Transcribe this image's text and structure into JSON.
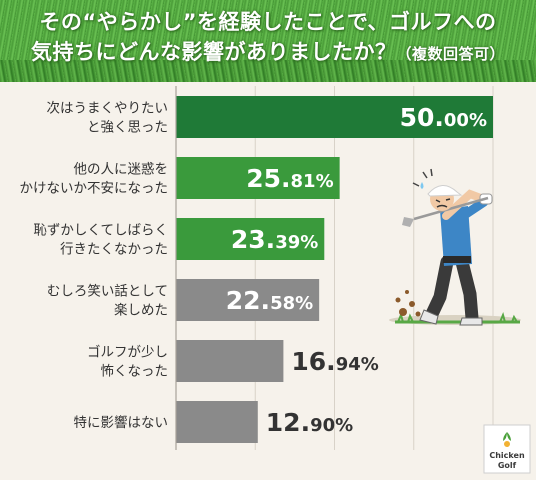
{
  "title": {
    "line1": "その“やらかし”を経験したことで、ゴルフへの",
    "line2_main": "気持ちにどんな影響がありましたか？",
    "line2_note": "（複数回答可）"
  },
  "logo": {
    "line1": "Chicken",
    "line2": "Golf"
  },
  "colors": {
    "dark_green": "#1f7a37",
    "green": "#3a9a3c",
    "gray": "#8a8a8a",
    "background": "#f6f2eb",
    "grid": "#d8d2c8"
  },
  "chart_data": {
    "type": "bar",
    "orientation": "horizontal",
    "categories": [
      [
        "次はうまくやりたい",
        "と強く思った"
      ],
      [
        "他の人に迷惑を",
        "かけないか不安になった"
      ],
      [
        "恥ずかしくてしばらく",
        "行きたくなかった"
      ],
      [
        "むしろ笑い話として",
        "楽しめた"
      ],
      [
        "ゴルフが少し",
        "怖くなった"
      ],
      [
        "特に影響はない"
      ]
    ],
    "values": [
      50.0,
      25.81,
      23.39,
      22.58,
      16.94,
      12.9
    ],
    "value_labels": [
      {
        "main": "50.",
        "decimals": "00%"
      },
      {
        "main": "25.",
        "decimals": "81%"
      },
      {
        "main": "23.",
        "decimals": "39%"
      },
      {
        "main": "22.",
        "decimals": "58%"
      },
      {
        "main": "16.",
        "decimals": "94%"
      },
      {
        "main": "12.",
        "decimals": "90%"
      }
    ],
    "bar_colors": [
      "#1f7a37",
      "#3a9a3c",
      "#3a9a3c",
      "#8a8a8a",
      "#8a8a8a",
      "#8a8a8a"
    ],
    "label_inside": [
      true,
      true,
      true,
      true,
      false,
      false
    ],
    "xlim": [
      0,
      50
    ],
    "grid": true
  }
}
